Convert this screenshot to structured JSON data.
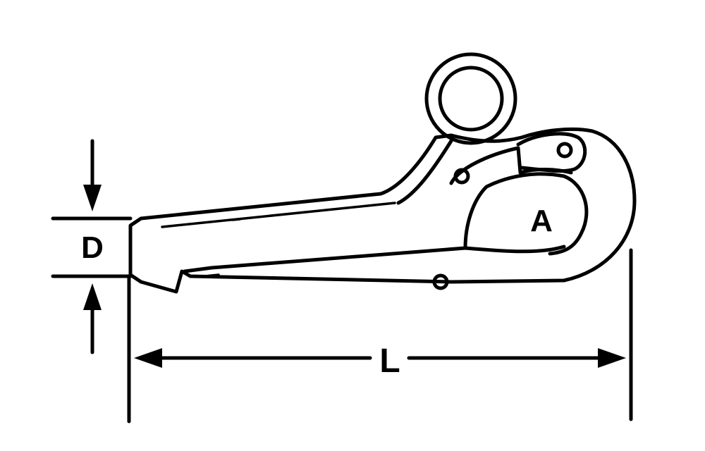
{
  "labels": {
    "depth": "D",
    "length": "L",
    "opening": "A"
  },
  "colors": {
    "line": "#000000",
    "background": "#ffffff"
  }
}
